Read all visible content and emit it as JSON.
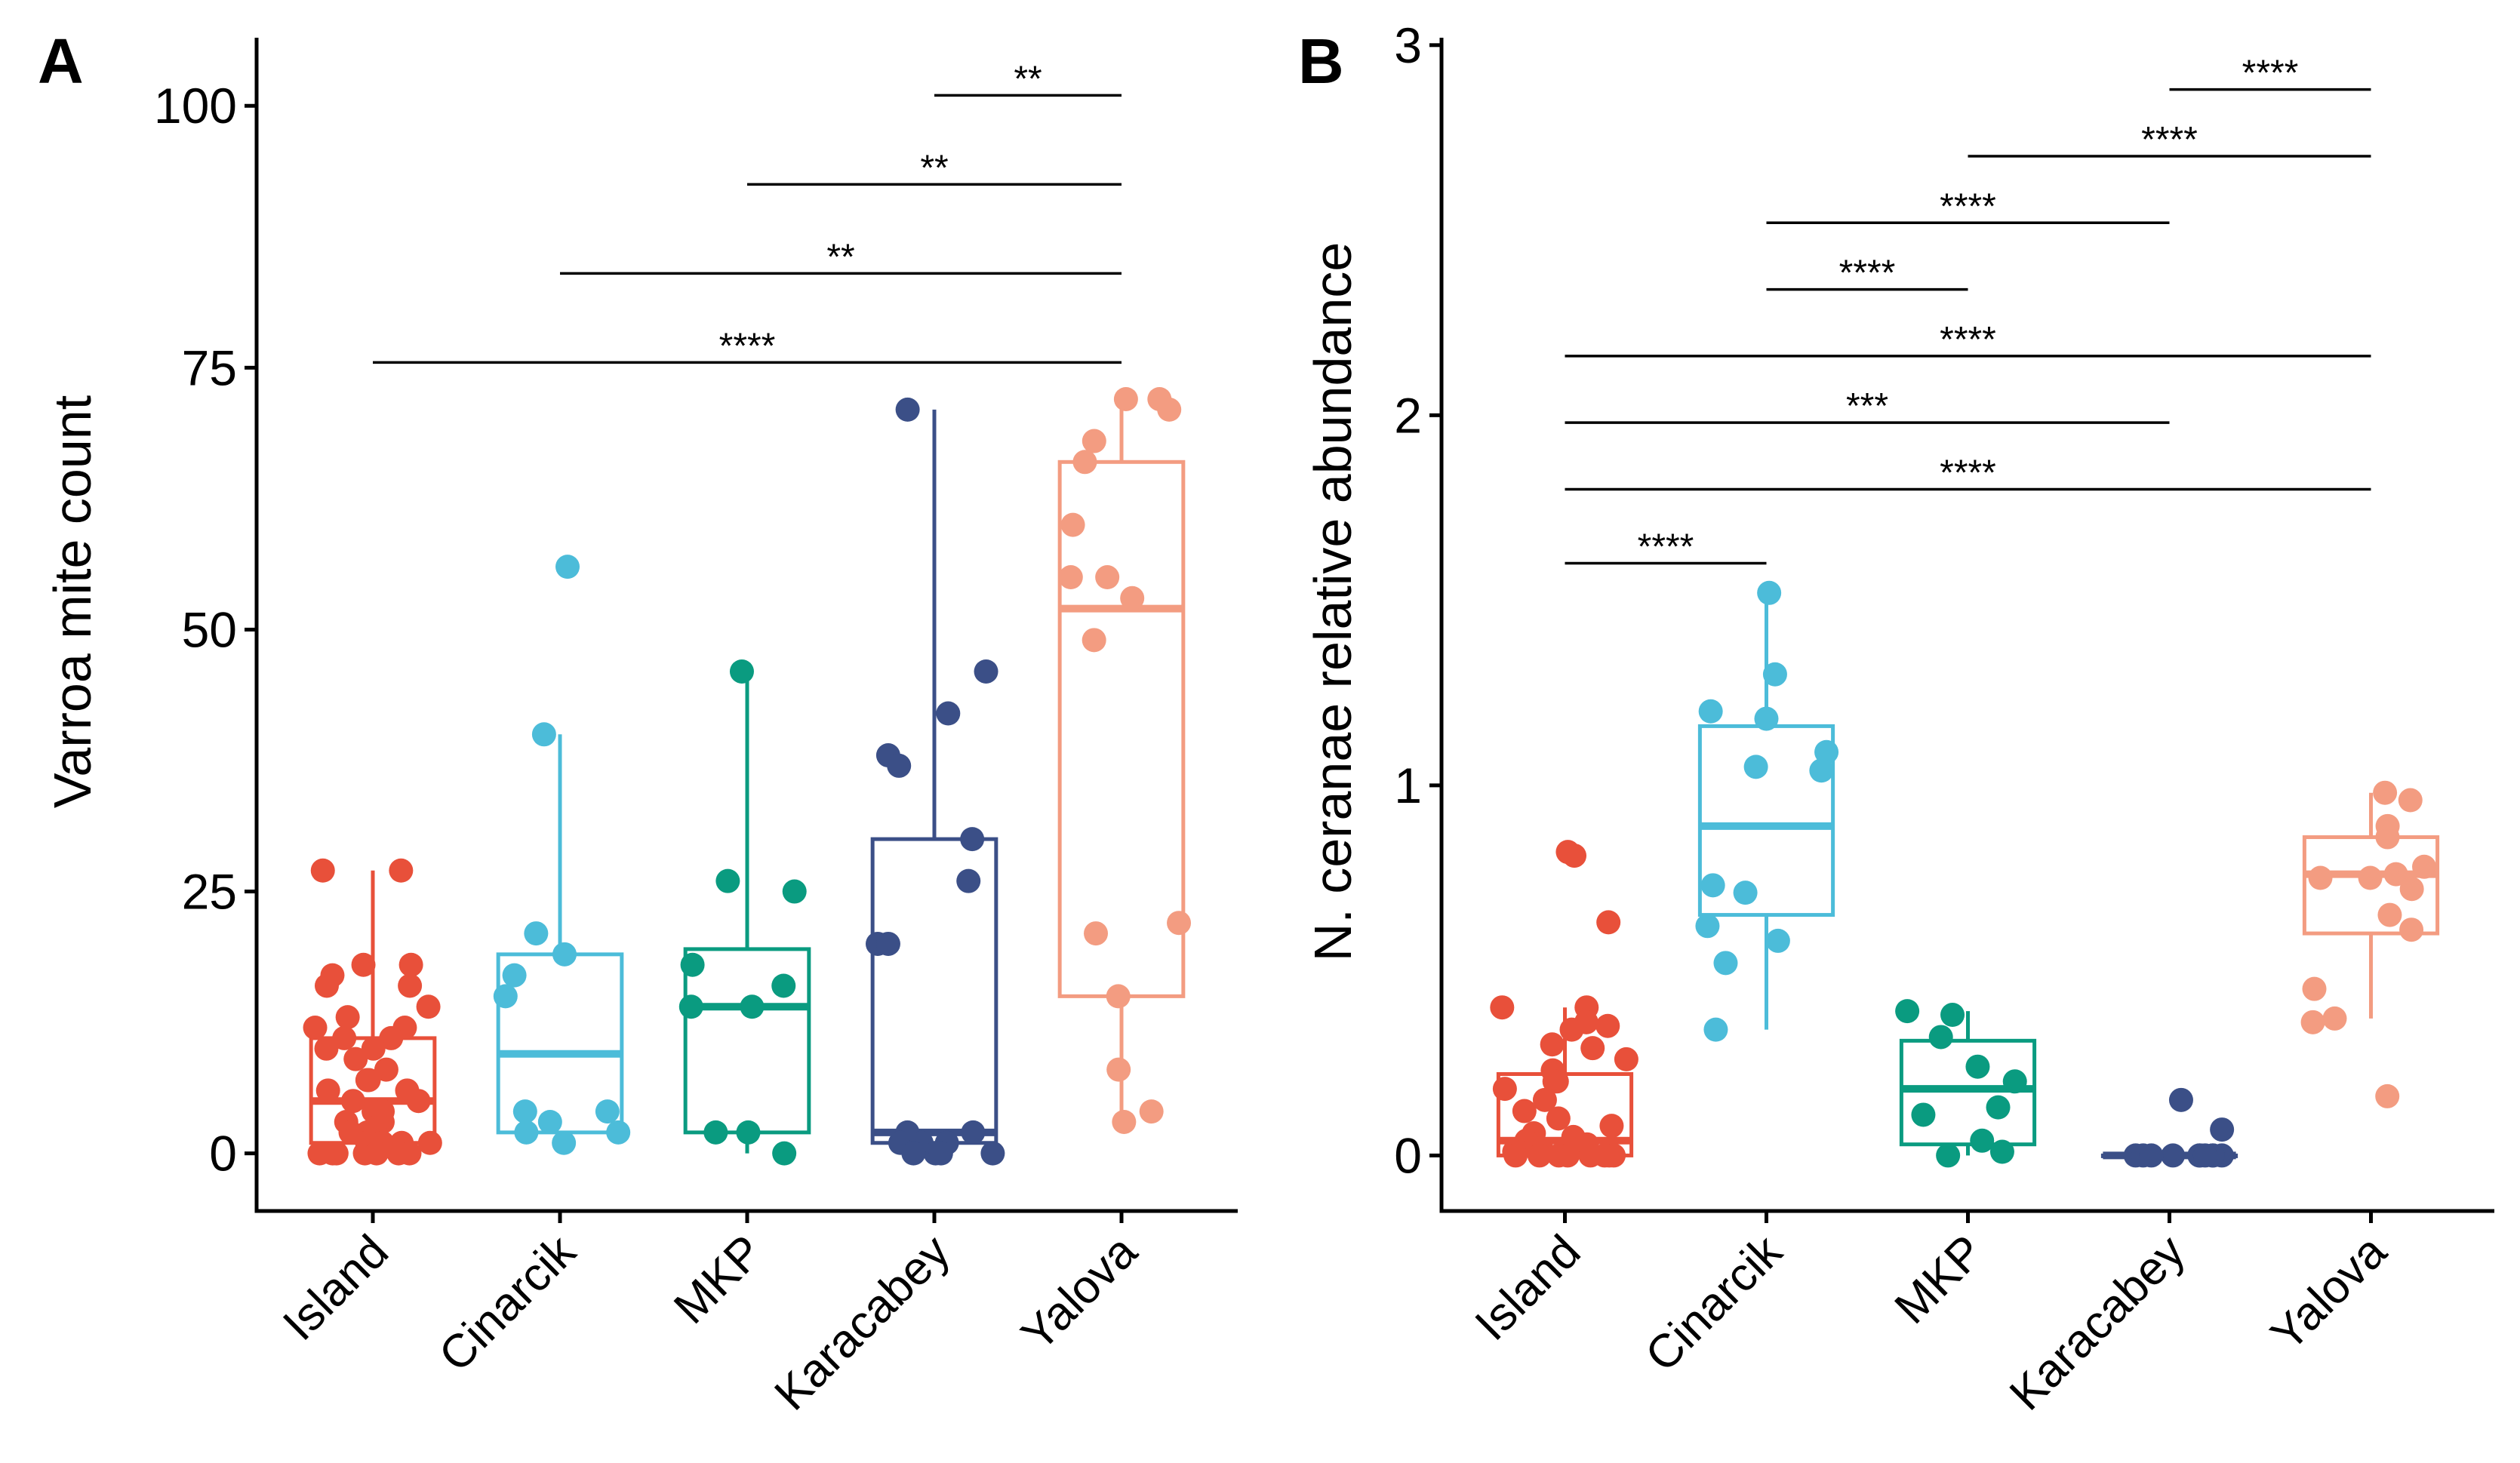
{
  "figure": {
    "panels": [
      "A",
      "B"
    ]
  },
  "colors": {
    "Island": "#e8503a",
    "Cinarcik": "#4cbcd9",
    "MKP": "#0a9b80",
    "Karacabey": "#3b4f87",
    "Yalova": "#f39c81",
    "axis": "#000000"
  },
  "chart_data": [
    {
      "panel": "A",
      "type": "box",
      "title": "",
      "xlabel": "",
      "ylabel": "Varroa mite count",
      "ylim": [
        -5.5,
        106.5
      ],
      "yticks": [
        0,
        25,
        50,
        75,
        100
      ],
      "ytick_labels": [
        "0",
        "25",
        "50",
        "75",
        "100"
      ],
      "categories": [
        "Island",
        "Cinarcik",
        "MKP",
        "Karacabey",
        "Yalova"
      ],
      "boxes": [
        {
          "category": "Island",
          "q1": 1,
          "median": 5,
          "q3": 11,
          "whisker_low": 0,
          "whisker_high": 27
        },
        {
          "category": "Cinarcik",
          "q1": 2,
          "median": 9.5,
          "q3": 19,
          "whisker_low": 1,
          "whisker_high": 40
        },
        {
          "category": "MKP",
          "q1": 2,
          "median": 14,
          "q3": 19.5,
          "whisker_low": 0,
          "whisker_high": 46
        },
        {
          "category": "Karacabey",
          "q1": 1,
          "median": 2,
          "q3": 30,
          "whisker_low": 0,
          "whisker_high": 71
        },
        {
          "category": "Yalova",
          "q1": 15,
          "median": 52,
          "q3": 66,
          "whisker_low": 3,
          "whisker_high": 72
        }
      ],
      "points": [
        {
          "category": "Island",
          "values": [
            27,
            27,
            18,
            18,
            17,
            16,
            16,
            14,
            13,
            12,
            12,
            11,
            11,
            10,
            10,
            9,
            8,
            7,
            7,
            6,
            6,
            5,
            5,
            4,
            4,
            3,
            3,
            2,
            2,
            2,
            1,
            1,
            1,
            1,
            0,
            0,
            0,
            0,
            0,
            0,
            0
          ]
        },
        {
          "category": "Cinarcik",
          "values": [
            56,
            40,
            21,
            19,
            17,
            15,
            4,
            4,
            3,
            2,
            2,
            1
          ]
        },
        {
          "category": "MKP",
          "values": [
            46,
            26,
            25,
            18,
            16,
            14,
            14,
            2,
            2,
            0
          ]
        },
        {
          "category": "Karacabey",
          "values": [
            71,
            46,
            42,
            38,
            37,
            30,
            26,
            20,
            20,
            2,
            2,
            1,
            1,
            1,
            0,
            0,
            0,
            0
          ]
        },
        {
          "category": "Yalova",
          "values": [
            72,
            72,
            71,
            68,
            66,
            60,
            55,
            55,
            53,
            49,
            22,
            21,
            15,
            8,
            4,
            3
          ]
        }
      ],
      "comparisons": [
        {
          "from": "Karacabey",
          "to": "Yalova",
          "y": 101,
          "label": "**"
        },
        {
          "from": "MKP",
          "to": "Yalova",
          "y": 92.5,
          "label": "**"
        },
        {
          "from": "Cinarcik",
          "to": "Yalova",
          "y": 84,
          "label": "**"
        },
        {
          "from": "Island",
          "to": "Yalova",
          "y": 75.5,
          "label": "****"
        }
      ]
    },
    {
      "panel": "B",
      "type": "box",
      "title": "",
      "xlabel": "",
      "ylabel": "N. ceranae relative abundance",
      "ylim": [
        -0.15,
        3.02
      ],
      "yticks": [
        0,
        1,
        2,
        3
      ],
      "ytick_labels": [
        "0",
        "1",
        "2",
        "3"
      ],
      "categories": [
        "Island",
        "Cinarcik",
        "MKP",
        "Karacabey",
        "Yalova"
      ],
      "boxes": [
        {
          "category": "Island",
          "q1": 0.0,
          "median": 0.04,
          "q3": 0.22,
          "whisker_low": 0.0,
          "whisker_high": 0.4
        },
        {
          "category": "Cinarcik",
          "q1": 0.65,
          "median": 0.89,
          "q3": 1.16,
          "whisker_low": 0.34,
          "whisker_high": 1.51
        },
        {
          "category": "MKP",
          "q1": 0.03,
          "median": 0.18,
          "q3": 0.31,
          "whisker_low": 0.0,
          "whisker_high": 0.39
        },
        {
          "category": "Karacabey",
          "q1": 0.0,
          "median": 0.0,
          "q3": 0.0,
          "whisker_low": 0.0,
          "whisker_high": 0.0
        },
        {
          "category": "Yalova",
          "q1": 0.6,
          "median": 0.76,
          "q3": 0.86,
          "whisker_low": 0.37,
          "whisker_high": 0.98
        }
      ],
      "points": [
        {
          "category": "Island",
          "values": [
            0.82,
            0.81,
            0.63,
            0.4,
            0.4,
            0.36,
            0.35,
            0.34,
            0.3,
            0.29,
            0.26,
            0.23,
            0.2,
            0.2,
            0.18,
            0.15,
            0.12,
            0.1,
            0.08,
            0.06,
            0.05,
            0.04,
            0.03,
            0.02,
            0.01,
            0.01,
            0.0,
            0.0,
            0.0,
            0.0,
            0.0,
            0.0,
            0.0,
            0.0
          ]
        },
        {
          "category": "Cinarcik",
          "values": [
            1.52,
            1.3,
            1.2,
            1.18,
            1.09,
            1.05,
            1.04,
            0.73,
            0.71,
            0.62,
            0.58,
            0.52,
            0.34
          ]
        },
        {
          "category": "MKP",
          "values": [
            0.39,
            0.38,
            0.32,
            0.24,
            0.2,
            0.13,
            0.11,
            0.04,
            0.01,
            0.0
          ]
        },
        {
          "category": "Karacabey",
          "values": [
            0.15,
            0.07,
            0.0,
            0.0,
            0.0,
            0.0,
            0.0,
            0.0,
            0.0,
            0.0,
            0.0,
            0.0
          ]
        },
        {
          "category": "Yalova",
          "values": [
            0.98,
            0.96,
            0.89,
            0.86,
            0.78,
            0.76,
            0.75,
            0.75,
            0.72,
            0.65,
            0.61,
            0.45,
            0.37,
            0.36,
            0.16
          ]
        }
      ],
      "comparisons": [
        {
          "from": "Karacabey",
          "to": "Yalova",
          "y": 2.88,
          "label": "****"
        },
        {
          "from": "MKP",
          "to": "Yalova",
          "y": 2.7,
          "label": "****"
        },
        {
          "from": "Cinarcik",
          "to": "Karacabey",
          "y": 2.52,
          "label": "****"
        },
        {
          "from": "Cinarcik",
          "to": "MKP",
          "y": 2.34,
          "label": "****"
        },
        {
          "from": "Island",
          "to": "Yalova",
          "y": 2.16,
          "label": "****"
        },
        {
          "from": "Island",
          "to": "Karacabey",
          "y": 1.98,
          "label": "***"
        },
        {
          "from": "Island",
          "to": "Yalova",
          "y": 1.8,
          "label": "****"
        },
        {
          "from": "Island",
          "to": "Cinarcik",
          "y": 1.6,
          "label": "****"
        }
      ]
    }
  ]
}
